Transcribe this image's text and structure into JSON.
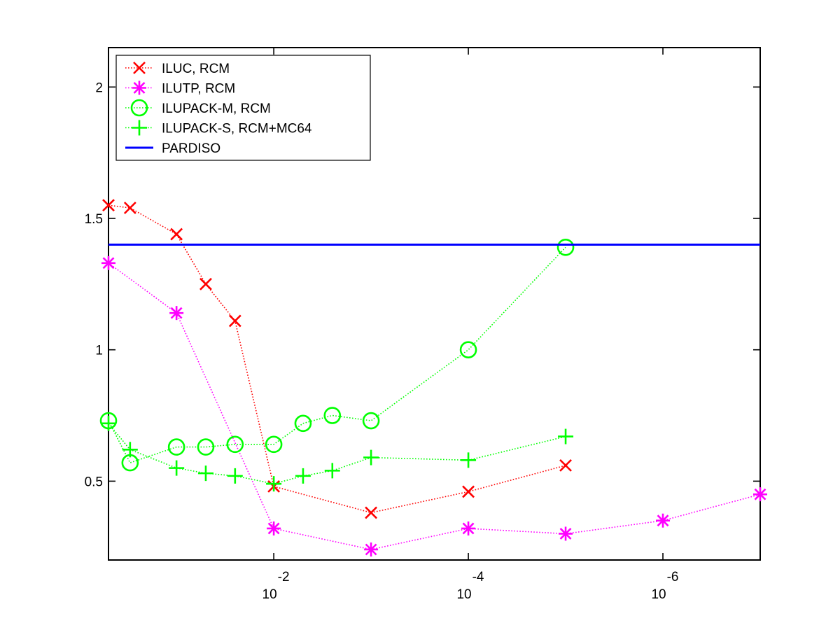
{
  "chart_data": {
    "type": "line",
    "title": "",
    "xlabel": "",
    "ylabel": "",
    "x_scale": "log",
    "x_direction": "decreasing",
    "xlim": [
      0.5,
      1e-07
    ],
    "ylim": [
      0.2,
      2.15
    ],
    "x_ticks": [
      {
        "value": 0.01,
        "base": "10",
        "exp": "-2"
      },
      {
        "value": 0.0001,
        "base": "10",
        "exp": "-4"
      },
      {
        "value": 1e-06,
        "base": "10",
        "exp": "-6"
      }
    ],
    "y_ticks": [
      {
        "value": 0.5,
        "label": "0.5"
      },
      {
        "value": 1,
        "label": "1"
      },
      {
        "value": 1.5,
        "label": "1.5"
      },
      {
        "value": 2,
        "label": "2"
      }
    ],
    "grid": false,
    "legend_position": "top-left",
    "series": [
      {
        "name": "ILUC, RCM",
        "color": "#ff0000",
        "marker": "x",
        "line_style": "dotted",
        "points": [
          [
            0.5,
            1.55
          ],
          [
            0.3,
            1.54
          ],
          [
            0.1,
            1.44
          ],
          [
            0.05,
            1.25
          ],
          [
            0.025,
            1.11
          ],
          [
            0.01,
            0.48
          ],
          [
            0.001,
            0.38
          ],
          [
            0.0001,
            0.46
          ],
          [
            1e-05,
            0.56
          ]
        ]
      },
      {
        "name": "ILUTP, RCM",
        "color": "#ff00ff",
        "marker": "asterisk",
        "line_style": "dotted",
        "points": [
          [
            0.5,
            1.33
          ],
          [
            0.1,
            1.14
          ],
          [
            0.01,
            0.32
          ],
          [
            0.001,
            0.24
          ],
          [
            0.0001,
            0.32
          ],
          [
            1e-05,
            0.3
          ],
          [
            1e-06,
            0.35
          ],
          [
            1e-07,
            0.45
          ]
        ]
      },
      {
        "name": "ILUPACK-M, RCM",
        "color": "#00ff00",
        "marker": "circle",
        "line_style": "dotted",
        "points": [
          [
            0.5,
            0.73
          ],
          [
            0.3,
            0.57
          ],
          [
            0.1,
            0.63
          ],
          [
            0.05,
            0.63
          ],
          [
            0.025,
            0.64
          ],
          [
            0.01,
            0.64
          ],
          [
            0.005,
            0.72
          ],
          [
            0.0025,
            0.75
          ],
          [
            0.001,
            0.73
          ],
          [
            0.0001,
            1.0
          ],
          [
            1e-05,
            1.39
          ]
        ]
      },
      {
        "name": "ILUPACK-S, RCM+MC64",
        "color": "#00ff00",
        "marker": "plus",
        "line_style": "dotted",
        "points": [
          [
            0.5,
            0.72
          ],
          [
            0.3,
            0.62
          ],
          [
            0.1,
            0.55
          ],
          [
            0.05,
            0.53
          ],
          [
            0.025,
            0.52
          ],
          [
            0.01,
            0.49
          ],
          [
            0.005,
            0.52
          ],
          [
            0.0025,
            0.54
          ],
          [
            0.001,
            0.59
          ],
          [
            0.0001,
            0.58
          ],
          [
            1e-05,
            0.67
          ]
        ]
      },
      {
        "name": "PARDISO",
        "color": "#0000ff",
        "marker": "none",
        "line_style": "solid",
        "points": [
          [
            0.5,
            1.4
          ],
          [
            1e-07,
            1.4
          ]
        ]
      }
    ]
  }
}
